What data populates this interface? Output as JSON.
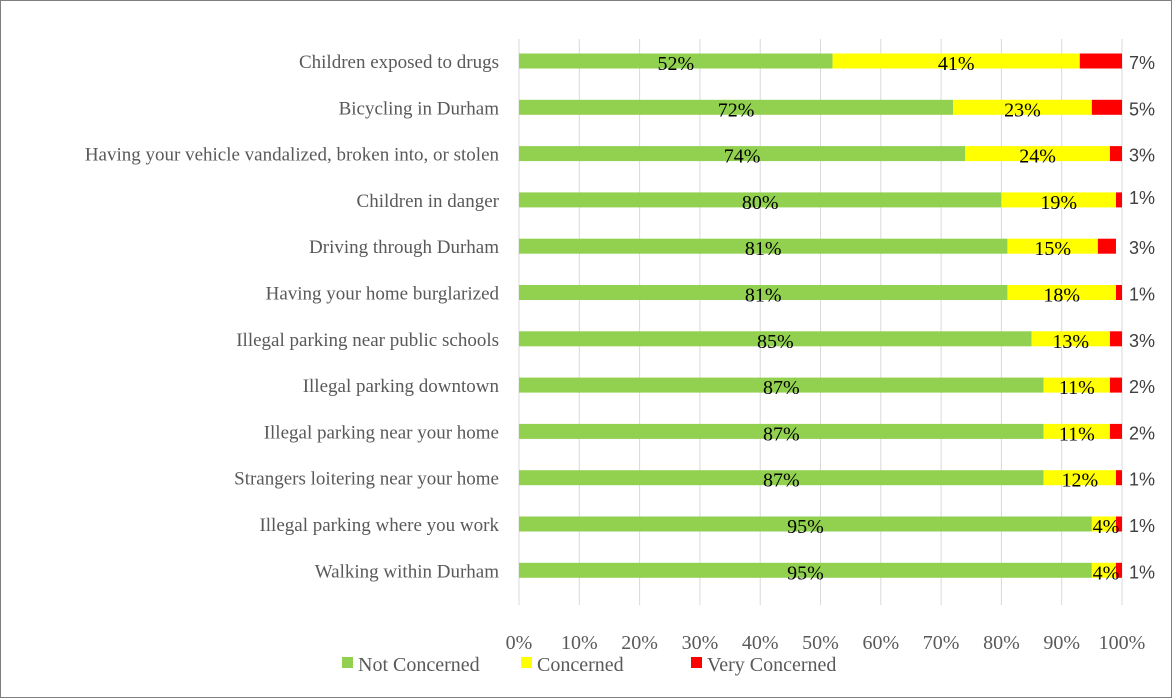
{
  "chart_data": {
    "type": "bar",
    "orientation": "horizontal",
    "stacked": true,
    "categories": [
      "Children exposed to drugs",
      "Bicycling in Durham",
      "Having your vehicle vandalized, broken into, or stolen",
      "Children in danger",
      "Driving through Durham",
      "Having your home burglarized",
      "Illegal parking near public schools",
      "Illegal parking downtown",
      "Illegal parking near your home",
      "Strangers loitering near your home",
      "Illegal parking where you work",
      "Walking within Durham"
    ],
    "series": [
      {
        "name": "Not Concerned",
        "color": "#92d050",
        "values": [
          52,
          72,
          74,
          80,
          81,
          81,
          85,
          87,
          87,
          87,
          95,
          95
        ]
      },
      {
        "name": "Concerned",
        "color": "#ffff00",
        "values": [
          41,
          23,
          24,
          19,
          15,
          18,
          13,
          11,
          11,
          12,
          4,
          4
        ]
      },
      {
        "name": "Very Concerned",
        "color": "#ff0000",
        "values": [
          7,
          5,
          3,
          1,
          3,
          1,
          3,
          2,
          2,
          1,
          1,
          1
        ]
      }
    ],
    "data_labels": {
      "Not Concerned": [
        "52%",
        "72%",
        "74%",
        "80%",
        "81%",
        "81%",
        "85%",
        "87%",
        "87%",
        "87%",
        "95%",
        "95%"
      ],
      "Concerned": [
        "41%",
        "23%",
        "24%",
        "19%",
        "15%",
        "18%",
        "13%",
        "11%",
        "11%",
        "12%",
        "4%",
        "4%"
      ],
      "Very Concerned": [
        "7%",
        "5%",
        "3%",
        "1%",
        "3%",
        "1%",
        "3%",
        "2%",
        "2%",
        "1%",
        "1%",
        "1%"
      ]
    },
    "xlim": [
      0,
      100
    ],
    "x_ticks": [
      "0%",
      "10%",
      "20%",
      "30%",
      "40%",
      "50%",
      "60%",
      "70%",
      "80%",
      "90%",
      "100%"
    ],
    "grid": true,
    "legend_position": "bottom"
  }
}
